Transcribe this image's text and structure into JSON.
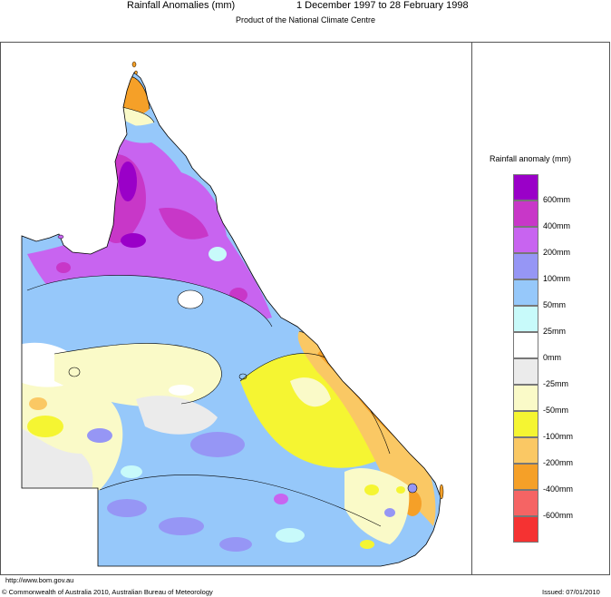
{
  "header": {
    "title": "Rainfall Anomalies (mm)",
    "period": "1 December 1997 to 28 February 1998",
    "subtitle": "Product of the National Climate Centre"
  },
  "legend": {
    "title": "Rainfall anomaly (mm)",
    "items": [
      {
        "color": "#9a00c8",
        "label": "600mm"
      },
      {
        "color": "#c837c8",
        "label": "400mm"
      },
      {
        "color": "#c864f0",
        "label": "200mm"
      },
      {
        "color": "#9696f5",
        "label": "100mm"
      },
      {
        "color": "#96c8fa",
        "label": "50mm"
      },
      {
        "color": "#c8fafa",
        "label": "25mm"
      },
      {
        "color": "#ffffff",
        "label": "0mm"
      },
      {
        "color": "#ebebeb",
        "label": "-25mm"
      },
      {
        "color": "#fafac8",
        "label": "-50mm"
      },
      {
        "color": "#f5f532",
        "label": "-100mm"
      },
      {
        "color": "#fac864",
        "label": "-200mm"
      },
      {
        "color": "#f5a028",
        "label": "-400mm"
      },
      {
        "color": "#f56464",
        "label": "-600mm"
      },
      {
        "color": "#f53232",
        "label": ""
      }
    ]
  },
  "footer": {
    "url": "http://www.bom.gov.au",
    "copyright": "© Commonwealth of Australia 2010, Australian Bureau of Meteorology",
    "issued": "Issued: 07/01/2010"
  }
}
